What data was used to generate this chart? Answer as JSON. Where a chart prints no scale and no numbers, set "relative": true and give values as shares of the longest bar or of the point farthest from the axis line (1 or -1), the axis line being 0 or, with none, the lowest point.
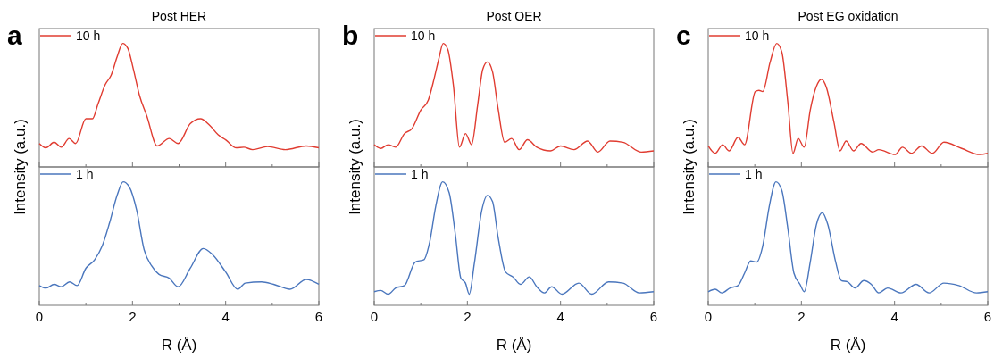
{
  "chart_data": [
    {
      "type": "line",
      "title": "Post HER",
      "ylabel": "Intensity (a.u.)",
      "annotations": [
        "a"
      ],
      "relative": true,
      "legend": "top left",
      "tick_labels": false,
      "xlim": [
        0,
        6
      ],
      "xticks": [
        0,
        {
          "value": 1,
          "label": null
        },
        2,
        {
          "value": 3,
          "label": null
        },
        4,
        {
          "value": 5,
          "label": null
        },
        6
      ],
      "x": [
        0,
        0.14,
        0.32,
        0.47,
        0.64,
        0.78,
        1.0,
        1.14,
        1.26,
        1.42,
        1.54,
        1.67,
        1.79,
        1.9,
        2.02,
        2.15,
        2.31,
        2.53,
        2.79,
        2.98,
        3.24,
        3.46,
        3.65,
        3.84,
        4.0,
        4.23,
        4.39,
        4.58,
        4.9,
        5.28,
        5.73,
        6
      ],
      "series": [
        {
          "name": "10 h",
          "color": "#e03c31",
          "values": [
            0.19,
            0.155,
            0.2,
            0.16,
            0.23,
            0.19,
            0.39,
            0.39,
            0.51,
            0.67,
            0.74,
            0.89,
            1.0,
            0.96,
            0.79,
            0.58,
            0.41,
            0.17,
            0.23,
            0.19,
            0.35,
            0.39,
            0.34,
            0.26,
            0.22,
            0.155,
            0.16,
            0.14,
            0.165,
            0.14,
            0.17,
            0.155
          ]
        }
      ]
    },
    {
      "type": "line",
      "xlabel": "R (Å)",
      "relative": true,
      "legend": "top left",
      "tick_labels": "x",
      "xlim": [
        0,
        6
      ],
      "xticks": [
        0,
        {
          "value": 1,
          "label": null
        },
        2,
        {
          "value": 3,
          "label": null
        },
        4,
        {
          "value": 5,
          "label": null
        },
        6
      ],
      "x": [
        0,
        0.14,
        0.32,
        0.47,
        0.65,
        0.81,
        1.0,
        1.19,
        1.35,
        1.51,
        1.67,
        1.8,
        1.93,
        2.09,
        2.25,
        2.41,
        2.57,
        2.79,
        2.98,
        3.24,
        3.52,
        3.72,
        4.0,
        4.26,
        4.42,
        4.77,
        5.03,
        5.38,
        5.73,
        6
      ],
      "series": [
        {
          "name": "1 h",
          "color": "#4a76bd",
          "values": [
            0.16,
            0.14,
            0.17,
            0.15,
            0.19,
            0.16,
            0.3,
            0.37,
            0.48,
            0.67,
            0.89,
            1.0,
            0.96,
            0.77,
            0.45,
            0.32,
            0.25,
            0.22,
            0.15,
            0.3,
            0.46,
            0.41,
            0.27,
            0.13,
            0.18,
            0.19,
            0.17,
            0.13,
            0.21,
            0.17
          ]
        }
      ]
    },
    {
      "type": "line",
      "title": "Post OER",
      "ylabel": "Intensity (a.u.)",
      "annotations": [
        "b"
      ],
      "relative": true,
      "legend": "top left",
      "tick_labels": false,
      "xlim": [
        0,
        6
      ],
      "xticks": [
        0,
        {
          "value": 1,
          "label": null
        },
        2,
        {
          "value": 3,
          "label": null
        },
        4,
        {
          "value": 5,
          "label": null
        },
        6
      ],
      "x": [
        0,
        0.14,
        0.3,
        0.46,
        0.65,
        0.81,
        1.0,
        1.16,
        1.29,
        1.39,
        1.48,
        1.58,
        1.7,
        1.83,
        1.96,
        2.09,
        2.22,
        2.33,
        2.43,
        2.54,
        2.66,
        2.8,
        2.95,
        3.11,
        3.29,
        3.49,
        3.78,
        4.0,
        4.29,
        4.58,
        4.8,
        5.06,
        5.34,
        5.73,
        6
      ],
      "series": [
        {
          "name": "10 h",
          "color": "#e03c31",
          "values": [
            0.18,
            0.15,
            0.18,
            0.16,
            0.27,
            0.31,
            0.46,
            0.54,
            0.72,
            0.88,
            1.0,
            0.95,
            0.66,
            0.16,
            0.27,
            0.18,
            0.5,
            0.79,
            0.85,
            0.77,
            0.47,
            0.2,
            0.23,
            0.14,
            0.22,
            0.16,
            0.13,
            0.17,
            0.14,
            0.21,
            0.12,
            0.21,
            0.2,
            0.12,
            0.13
          ]
        }
      ]
    },
    {
      "type": "line",
      "xlabel": "R (Å)",
      "relative": true,
      "legend": "top left",
      "tick_labels": "x",
      "xlim": [
        0,
        6
      ],
      "xticks": [
        0,
        {
          "value": 1,
          "label": null
        },
        2,
        {
          "value": 3,
          "label": null
        },
        4,
        {
          "value": 5,
          "label": null
        },
        6
      ],
      "x": [
        0,
        0.14,
        0.3,
        0.46,
        0.65,
        0.88,
        1.07,
        1.19,
        1.32,
        1.47,
        1.61,
        1.74,
        1.86,
        1.96,
        2.04,
        2.15,
        2.31,
        2.43,
        2.54,
        2.66,
        2.82,
        2.98,
        3.14,
        3.33,
        3.49,
        3.65,
        3.81,
        4.03,
        4.39,
        4.67,
        5.03,
        5.34,
        5.69,
        6
      ],
      "series": [
        {
          "name": "1 h",
          "color": "#4a76bd",
          "values": [
            0.11,
            0.12,
            0.09,
            0.14,
            0.16,
            0.35,
            0.37,
            0.51,
            0.8,
            1.0,
            0.91,
            0.58,
            0.22,
            0.18,
            0.09,
            0.34,
            0.77,
            0.89,
            0.84,
            0.55,
            0.27,
            0.23,
            0.17,
            0.23,
            0.15,
            0.1,
            0.15,
            0.09,
            0.18,
            0.09,
            0.19,
            0.18,
            0.1,
            0.11
          ]
        }
      ]
    },
    {
      "type": "line",
      "title": "Post EG oxidation",
      "ylabel": "Intensity (a.u.)",
      "annotations": [
        "c"
      ],
      "relative": true,
      "legend": "top left",
      "tick_labels": false,
      "xlim": [
        0,
        6
      ],
      "xticks": [
        0,
        {
          "value": 1,
          "label": null
        },
        2,
        {
          "value": 3,
          "label": null
        },
        4,
        {
          "value": 5,
          "label": null
        },
        6
      ],
      "x": [
        0,
        0.15,
        0.31,
        0.45,
        0.64,
        0.78,
        1.01,
        1.09,
        1.17,
        1.33,
        1.47,
        1.58,
        1.71,
        1.82,
        1.93,
        2.06,
        2.19,
        2.32,
        2.43,
        2.54,
        2.7,
        2.83,
        2.96,
        3.12,
        3.28,
        3.53,
        3.66,
        4.01,
        4.17,
        4.36,
        4.58,
        4.81,
        5.06,
        5.44,
        5.83,
        6
      ],
      "series": [
        {
          "name": "10 h",
          "color": "#e03c31",
          "values": [
            0.17,
            0.11,
            0.18,
            0.13,
            0.24,
            0.18,
            0.61,
            0.62,
            0.61,
            0.85,
            1.0,
            0.93,
            0.52,
            0.11,
            0.23,
            0.16,
            0.46,
            0.65,
            0.71,
            0.64,
            0.36,
            0.13,
            0.21,
            0.13,
            0.19,
            0.12,
            0.14,
            0.1,
            0.16,
            0.11,
            0.17,
            0.11,
            0.2,
            0.15,
            0.1,
            0.11
          ]
        }
      ]
    },
    {
      "type": "line",
      "xlabel": "R (Å)",
      "relative": true,
      "legend": "top left",
      "tick_labels": "x",
      "xlim": [
        0,
        6
      ],
      "xticks": [
        0,
        {
          "value": 1,
          "label": null
        },
        2,
        {
          "value": 3,
          "label": null
        },
        4,
        {
          "value": 5,
          "label": null
        },
        6
      ],
      "x": [
        0,
        0.15,
        0.29,
        0.47,
        0.64,
        0.78,
        0.91,
        1.04,
        1.17,
        1.31,
        1.455,
        1.58,
        1.71,
        1.84,
        1.97,
        2.06,
        2.19,
        2.32,
        2.45,
        2.57,
        2.73,
        2.86,
        2.99,
        3.15,
        3.34,
        3.5,
        3.66,
        3.85,
        4.14,
        4.46,
        4.74,
        5.06,
        5.38,
        5.76,
        6
      ],
      "series": [
        {
          "name": "1 h",
          "color": "#4a76bd",
          "values": [
            0.11,
            0.13,
            0.1,
            0.14,
            0.16,
            0.26,
            0.36,
            0.35,
            0.48,
            0.8,
            1.0,
            0.93,
            0.62,
            0.26,
            0.17,
            0.11,
            0.35,
            0.65,
            0.75,
            0.65,
            0.36,
            0.2,
            0.19,
            0.14,
            0.2,
            0.17,
            0.1,
            0.14,
            0.1,
            0.17,
            0.1,
            0.18,
            0.16,
            0.1,
            0.11
          ]
        }
      ]
    }
  ]
}
